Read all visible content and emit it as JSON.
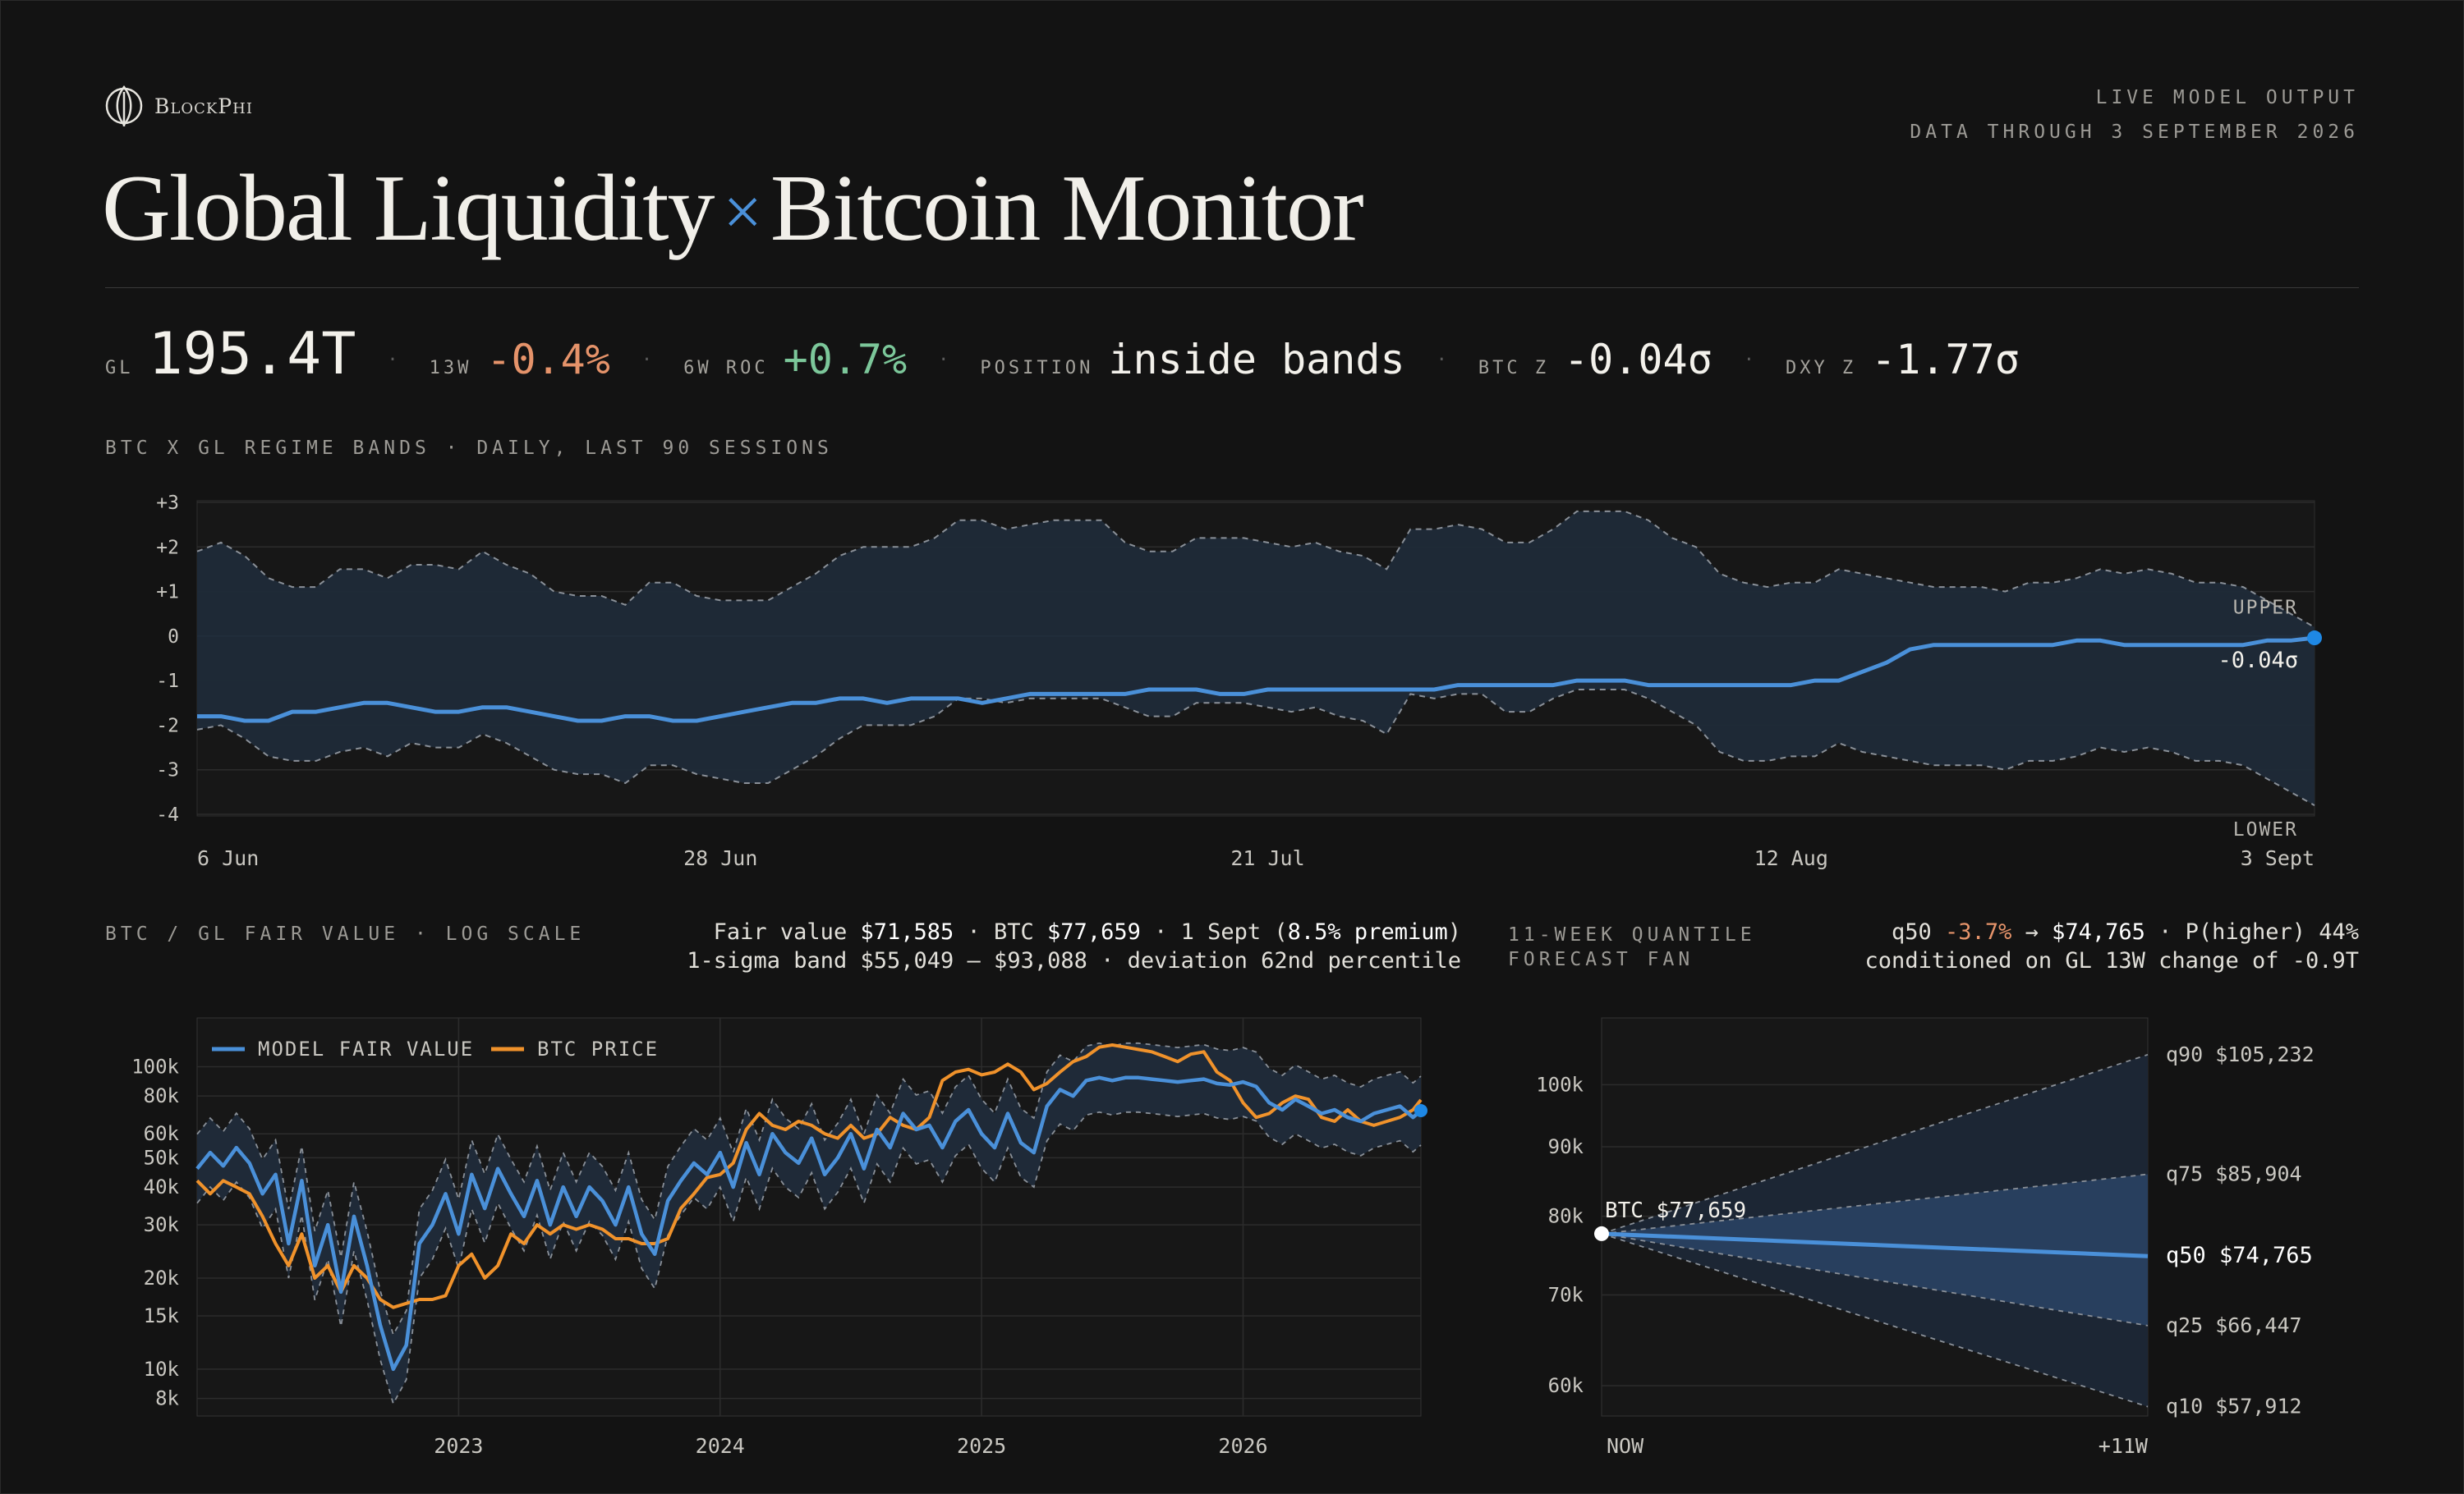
{
  "brand": {
    "name": "BlockPhi"
  },
  "header": {
    "meta_line1": "LIVE MODEL OUTPUT",
    "meta_line2": "DATA THROUGH 3 SEPTEMBER 2026",
    "title_left": "Global Liquidity",
    "title_sep": "×",
    "title_right": "Bitcoin Monitor"
  },
  "kpis": {
    "gl_label": "GL",
    "gl_value": "195.4T",
    "w13_label": "13W",
    "w13_value": "-0.4%",
    "roc_label": "6W ROC",
    "roc_value": "+0.7%",
    "pos_label": "POSITION",
    "pos_value": "inside bands",
    "btcz_label": "BTC Z",
    "btcz_value": "-0.04σ",
    "dxyz_label": "DXY Z",
    "dxyz_value": "-1.77σ",
    "separator": "·"
  },
  "colors": {
    "accent": "#4a90d9",
    "btc": "#f0922b",
    "band": "#1f2a38",
    "negative": "#e5936a",
    "positive": "#7cc79a",
    "background": "#131313"
  },
  "chart_data": [
    {
      "type": "area",
      "title": "BTC X GL REGIME BANDS · DAILY, LAST 90 SESSIONS",
      "ylim": [
        -4,
        3
      ],
      "y_ticks": [
        3,
        2,
        1,
        0,
        -1,
        -2,
        -3,
        -4
      ],
      "y_tick_labels": [
        "+3",
        "+2",
        "+1",
        "0",
        "-1",
        "-2",
        "-3",
        "-4"
      ],
      "x_ticks": [
        0,
        22,
        45,
        67,
        89
      ],
      "x_tick_labels": [
        "6 Jun",
        "28 Jun",
        "21 Jul",
        "12 Aug",
        "3 Sept"
      ],
      "band_labels": {
        "upper": "UPPER",
        "lower": "LOWER"
      },
      "current_label": "-0.04σ",
      "series": [
        {
          "name": "upper",
          "values": [
            1.9,
            2.1,
            1.8,
            1.3,
            1.1,
            1.1,
            1.5,
            1.5,
            1.3,
            1.6,
            1.6,
            1.5,
            1.9,
            1.6,
            1.4,
            1.0,
            0.9,
            0.9,
            0.7,
            1.2,
            1.2,
            0.9,
            0.8,
            0.8,
            0.8,
            1.1,
            1.4,
            1.8,
            2.0,
            2.0,
            2.0,
            2.2,
            2.6,
            2.6,
            2.4,
            2.5,
            2.6,
            2.6,
            2.6,
            2.1,
            1.9,
            1.9,
            2.2,
            2.2,
            2.2,
            2.1,
            2.0,
            2.1,
            1.9,
            1.8,
            1.5,
            2.4,
            2.4,
            2.5,
            2.4,
            2.1,
            2.1,
            2.4,
            2.8,
            2.8,
            2.8,
            2.6,
            2.2,
            2.0,
            1.4,
            1.2,
            1.1,
            1.2,
            1.2,
            1.5,
            1.4,
            1.3,
            1.2,
            1.1,
            1.1,
            1.1,
            1.0,
            1.2,
            1.2,
            1.3,
            1.5,
            1.4,
            1.5,
            1.4,
            1.2,
            1.2,
            1.1,
            0.8,
            0.5,
            0.2
          ]
        },
        {
          "name": "lower",
          "values": [
            -2.1,
            -2.0,
            -2.3,
            -2.7,
            -2.8,
            -2.8,
            -2.6,
            -2.5,
            -2.7,
            -2.4,
            -2.5,
            -2.5,
            -2.2,
            -2.4,
            -2.7,
            -3.0,
            -3.1,
            -3.1,
            -3.3,
            -2.9,
            -2.9,
            -3.1,
            -3.2,
            -3.3,
            -3.3,
            -3.0,
            -2.7,
            -2.3,
            -2.0,
            -2.0,
            -2.0,
            -1.8,
            -1.4,
            -1.4,
            -1.5,
            -1.4,
            -1.4,
            -1.4,
            -1.4,
            -1.6,
            -1.8,
            -1.8,
            -1.5,
            -1.5,
            -1.5,
            -1.6,
            -1.7,
            -1.6,
            -1.8,
            -1.9,
            -2.2,
            -1.3,
            -1.4,
            -1.3,
            -1.3,
            -1.7,
            -1.7,
            -1.4,
            -1.2,
            -1.2,
            -1.2,
            -1.4,
            -1.7,
            -2.0,
            -2.6,
            -2.8,
            -2.8,
            -2.7,
            -2.7,
            -2.4,
            -2.6,
            -2.7,
            -2.8,
            -2.9,
            -2.9,
            -2.9,
            -3.0,
            -2.8,
            -2.8,
            -2.7,
            -2.5,
            -2.6,
            -2.5,
            -2.6,
            -2.8,
            -2.8,
            -2.9,
            -3.2,
            -3.5,
            -3.8
          ]
        },
        {
          "name": "BTC z",
          "values": [
            -1.8,
            -1.8,
            -1.9,
            -1.9,
            -1.7,
            -1.7,
            -1.6,
            -1.5,
            -1.5,
            -1.6,
            -1.7,
            -1.7,
            -1.6,
            -1.6,
            -1.7,
            -1.8,
            -1.9,
            -1.9,
            -1.8,
            -1.8,
            -1.9,
            -1.9,
            -1.8,
            -1.7,
            -1.6,
            -1.5,
            -1.5,
            -1.4,
            -1.4,
            -1.5,
            -1.4,
            -1.4,
            -1.4,
            -1.5,
            -1.4,
            -1.3,
            -1.3,
            -1.3,
            -1.3,
            -1.3,
            -1.2,
            -1.2,
            -1.2,
            -1.3,
            -1.3,
            -1.2,
            -1.2,
            -1.2,
            -1.2,
            -1.2,
            -1.2,
            -1.2,
            -1.2,
            -1.1,
            -1.1,
            -1.1,
            -1.1,
            -1.1,
            -1.0,
            -1.0,
            -1.0,
            -1.1,
            -1.1,
            -1.1,
            -1.1,
            -1.1,
            -1.1,
            -1.1,
            -1.0,
            -1.0,
            -0.8,
            -0.6,
            -0.3,
            -0.2,
            -0.2,
            -0.2,
            -0.2,
            -0.2,
            -0.2,
            -0.1,
            -0.1,
            -0.2,
            -0.2,
            -0.2,
            -0.2,
            -0.2,
            -0.2,
            -0.1,
            -0.1,
            -0.04
          ]
        }
      ]
    },
    {
      "type": "line",
      "title": "BTC / GL FAIR VALUE · LOG SCALE",
      "yscale": "log",
      "ylim": [
        7000,
        145000
      ],
      "y_ticks": [
        8000,
        10000,
        15000,
        20000,
        30000,
        40000,
        50000,
        60000,
        80000,
        100000
      ],
      "y_tick_labels": [
        "8k",
        "10k",
        "15k",
        "20k",
        "30k",
        "40k",
        "50k",
        "60k",
        "80k",
        "100k"
      ],
      "xlim": [
        2022.0,
        2026.68
      ],
      "x_ticks": [
        2023,
        2024,
        2025,
        2026
      ],
      "x_tick_labels": [
        "2023",
        "2024",
        "2025",
        "2026"
      ],
      "legend": {
        "fair": "MODEL FAIR VALUE",
        "btc": "BTC PRICE"
      },
      "legend_position": "top-left",
      "band_width_factor": 1.3,
      "x": [
        2022.0,
        2022.05,
        2022.1,
        2022.15,
        2022.2,
        2022.25,
        2022.3,
        2022.35,
        2022.4,
        2022.45,
        2022.5,
        2022.55,
        2022.6,
        2022.65,
        2022.7,
        2022.75,
        2022.8,
        2022.85,
        2022.9,
        2022.95,
        2023.0,
        2023.05,
        2023.1,
        2023.15,
        2023.2,
        2023.25,
        2023.3,
        2023.35,
        2023.4,
        2023.45,
        2023.5,
        2023.55,
        2023.6,
        2023.65,
        2023.7,
        2023.75,
        2023.8,
        2023.85,
        2023.9,
        2023.95,
        2024.0,
        2024.05,
        2024.1,
        2024.15,
        2024.2,
        2024.25,
        2024.3,
        2024.35,
        2024.4,
        2024.45,
        2024.5,
        2024.55,
        2024.6,
        2024.65,
        2024.7,
        2024.75,
        2024.8,
        2024.85,
        2024.9,
        2024.95,
        2025.0,
        2025.05,
        2025.1,
        2025.15,
        2025.2,
        2025.25,
        2025.3,
        2025.35,
        2025.4,
        2025.45,
        2025.5,
        2025.55,
        2025.6,
        2025.65,
        2025.7,
        2025.75,
        2025.8,
        2025.85,
        2025.9,
        2025.95,
        2026.0,
        2026.05,
        2026.1,
        2026.15,
        2026.2,
        2026.25,
        2026.3,
        2026.35,
        2026.4,
        2026.45,
        2026.5,
        2026.55,
        2026.6,
        2026.65,
        2026.68
      ],
      "series": [
        {
          "name": "MODEL FAIR VALUE",
          "values": [
            46000,
            52000,
            47000,
            54000,
            48000,
            38000,
            44000,
            26000,
            42000,
            22000,
            30000,
            18000,
            32000,
            22000,
            14000,
            10000,
            12000,
            26000,
            30000,
            38000,
            28000,
            44000,
            34000,
            46000,
            38000,
            32000,
            42000,
            30000,
            40000,
            32000,
            40000,
            36000,
            30000,
            40000,
            28000,
            24000,
            36000,
            42000,
            48000,
            44000,
            52000,
            40000,
            56000,
            44000,
            60000,
            52000,
            48000,
            58000,
            44000,
            50000,
            60000,
            46000,
            62000,
            54000,
            70000,
            62000,
            64000,
            54000,
            66000,
            72000,
            60000,
            54000,
            70000,
            56000,
            52000,
            74000,
            84000,
            80000,
            90000,
            92000,
            90000,
            92000,
            92000,
            91000,
            90000,
            89000,
            90000,
            91000,
            88000,
            87000,
            89000,
            86000,
            76000,
            72000,
            78000,
            74000,
            70000,
            72000,
            68000,
            66000,
            70000,
            72000,
            74000,
            68000,
            71585
          ]
        },
        {
          "name": "BTC PRICE",
          "values": [
            42000,
            38000,
            42000,
            40000,
            38000,
            32000,
            26000,
            22000,
            28000,
            20000,
            22000,
            18000,
            22000,
            20000,
            17000,
            16000,
            16500,
            17000,
            17000,
            17500,
            22000,
            24000,
            20000,
            22000,
            28000,
            26000,
            30000,
            28000,
            30000,
            29000,
            30000,
            29000,
            27000,
            27000,
            26000,
            26000,
            27000,
            34000,
            38000,
            43000,
            44000,
            48000,
            62000,
            70000,
            64000,
            62000,
            66000,
            64000,
            60000,
            58000,
            64000,
            58000,
            60000,
            68000,
            64000,
            62000,
            68000,
            90000,
            96000,
            98000,
            94000,
            96000,
            102000,
            96000,
            84000,
            88000,
            96000,
            104000,
            108000,
            116000,
            118000,
            116000,
            114000,
            112000,
            108000,
            104000,
            110000,
            112000,
            96000,
            90000,
            76000,
            68000,
            70000,
            76000,
            80000,
            78000,
            68000,
            66000,
            72000,
            66000,
            64000,
            66000,
            68000,
            72000,
            77659
          ]
        }
      ]
    },
    {
      "type": "area",
      "title": "11-WEEK QUANTILE FORECAST FAN",
      "yscale": "log",
      "ylim": [
        57000,
        112000
      ],
      "y_ticks": [
        60000,
        70000,
        80000,
        90000,
        100000
      ],
      "y_tick_labels": [
        "60k",
        "70k",
        "80k",
        "90k",
        "100k"
      ],
      "x": [
        0,
        11
      ],
      "x_tick_labels": [
        "NOW",
        "+11W"
      ],
      "start": {
        "label": "BTC $77,659",
        "value": 77659
      },
      "quantiles": [
        {
          "name": "q90",
          "value": 105232,
          "label": "q90 $105,232"
        },
        {
          "name": "q75",
          "value": 85904,
          "label": "q75 $85,904"
        },
        {
          "name": "q50",
          "value": 74765,
          "label": "q50 $74,765"
        },
        {
          "name": "q25",
          "value": 66447,
          "label": "q25 $66,447"
        },
        {
          "name": "q10",
          "value": 57912,
          "label": "q10 $57,912"
        }
      ]
    }
  ],
  "fair_value_note": {
    "line1_pre": "Fair value ",
    "fair": "$71,585",
    "line1_mid": " · BTC ",
    "btc": "$77,659",
    "line1_date": " · 1 Sept (",
    "premium": "8.5% premium",
    "line1_end": ")",
    "line2": "1-sigma band $55,049 – $93,088 · deviation 62nd percentile"
  },
  "forecast_note": {
    "q50_label": "q50 ",
    "q50_change": "-3.7%",
    "arrow": " → ",
    "q50_value": "$74,765",
    "line1_end": " · P(higher) 44%",
    "line2": "conditioned on GL 13W change of -0.9T"
  }
}
